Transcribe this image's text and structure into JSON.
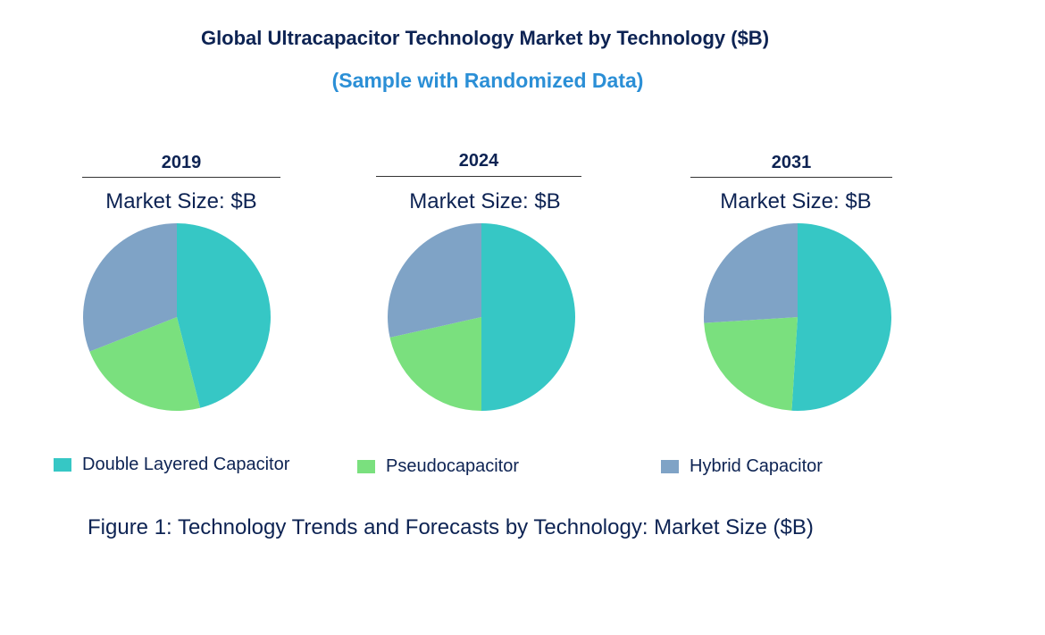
{
  "chart_data": {
    "type": "pie",
    "title": "Global Ultracapacitor Technology Market by  Technology ($B)",
    "subtitle": "(Sample with Randomized Data)",
    "caption": "Figure 1: Technology Trends and Forecasts by Technology: Market Size ($B)",
    "legend_position": "bottom",
    "series_names": [
      "Double Layered Capacitor",
      "Pseudocapacitor",
      "Hybrid Capacitor"
    ],
    "colors": [
      "#36c7c5",
      "#7ae07e",
      "#7fa3c6"
    ],
    "pies": [
      {
        "year": "2019",
        "label": "Market Size: $B",
        "values": [
          46,
          23,
          31
        ]
      },
      {
        "year": "2024",
        "label": "Market Size: $B",
        "values": [
          50,
          21.5,
          28.5
        ]
      },
      {
        "year": "2031",
        "label": "Market Size: $B",
        "values": [
          51,
          23,
          26
        ]
      }
    ]
  }
}
